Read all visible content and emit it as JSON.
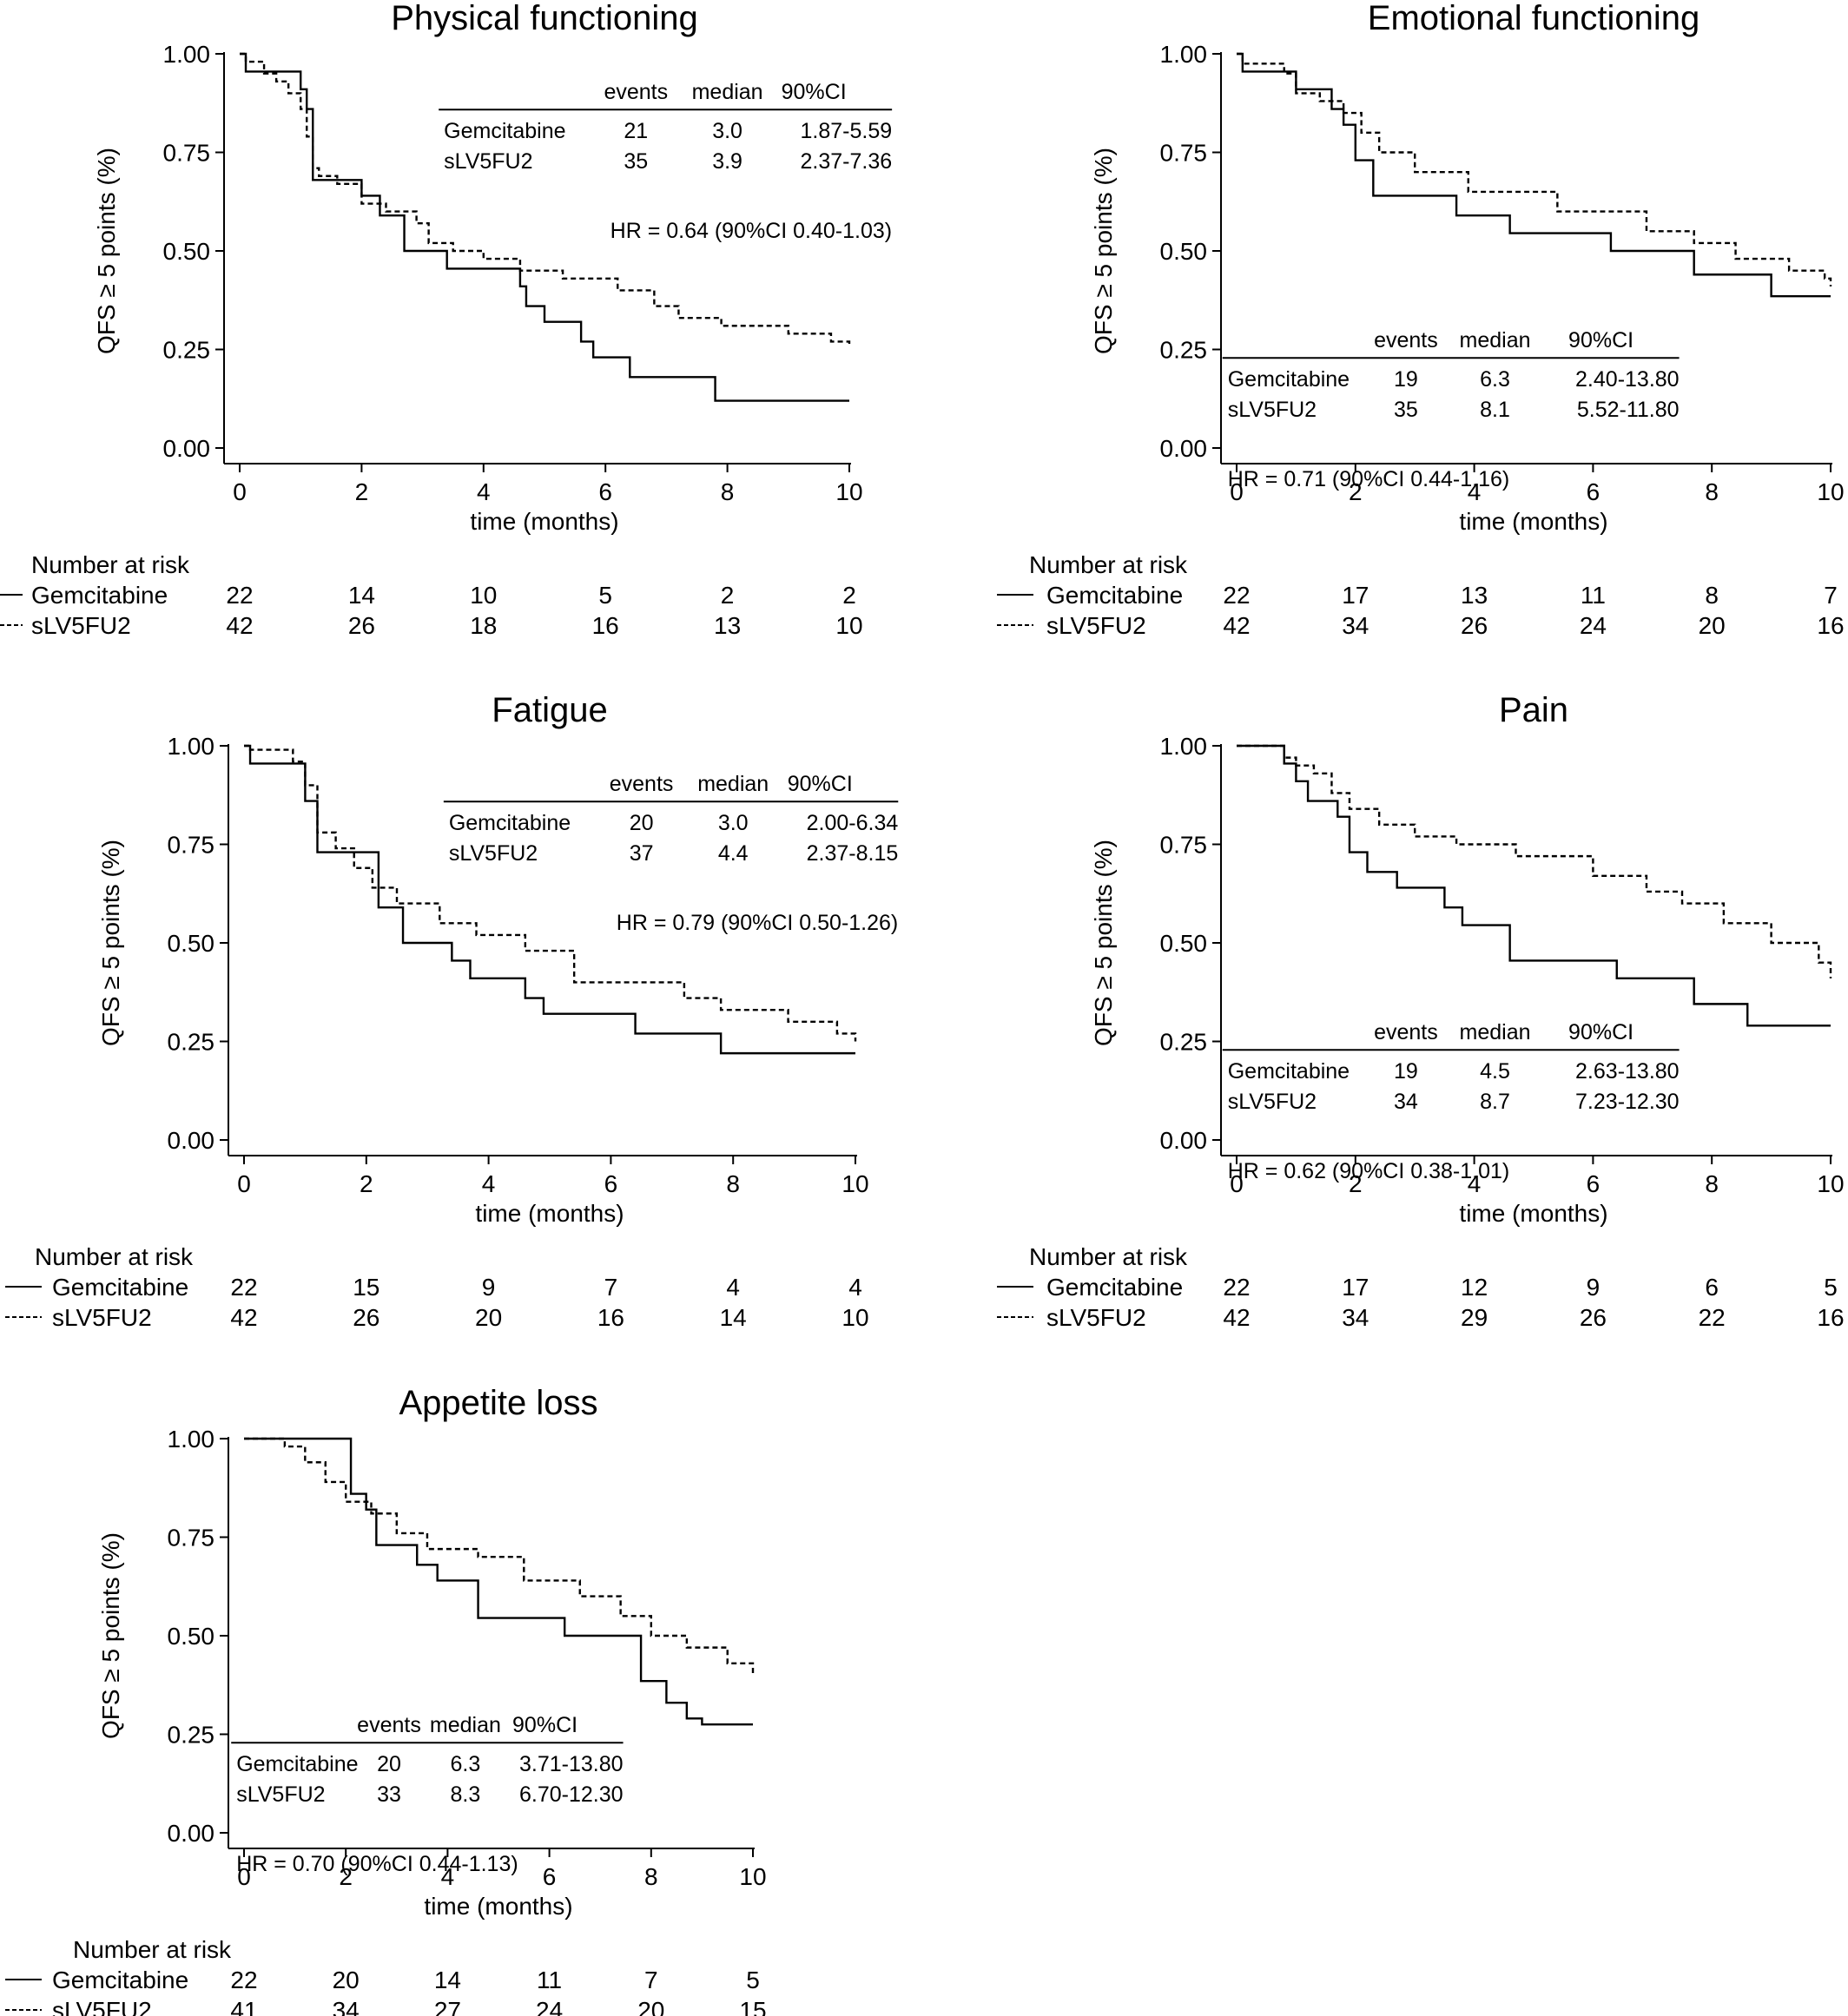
{
  "figure": {
    "y_axis_label": "QFS ≥ 5 points (%)",
    "x_axis_label": "time (months)",
    "risk_heading": "Number at risk",
    "table_headers": [
      "events",
      "median",
      "90%CI"
    ],
    "x_ticks": [
      "0",
      "2",
      "4",
      "6",
      "8",
      "10"
    ],
    "y_ticks": [
      "0.00",
      "0.25",
      "0.50",
      "0.75",
      "1.00"
    ],
    "arms": [
      "Gemcitabine",
      "sLV5FU2"
    ]
  },
  "chart_data": [
    {
      "type": "line",
      "title": "Physical functioning",
      "xlabel": "time (months)",
      "ylabel": "QFS ≥ 5 points (%)",
      "xlim": [
        0,
        10
      ],
      "ylim": [
        0,
        1
      ],
      "table_placement": "top-right",
      "table": [
        {
          "arm": "Gemcitabine",
          "events": "21",
          "median": "3.0",
          "ci": "1.87-5.59"
        },
        {
          "arm": "sLV5FU2",
          "events": "35",
          "median": "3.9",
          "ci": "2.37-7.36"
        }
      ],
      "hr": "HR = 0.64 (90%CI 0.40-1.03)",
      "series": [
        {
          "name": "Gemcitabine",
          "style": "solid",
          "x": [
            0,
            0.1,
            0.9,
            1.0,
            1.1,
            1.2,
            2.0,
            2.3,
            2.7,
            3.4,
            4.6,
            4.7,
            5.0,
            5.6,
            5.8,
            6.4,
            7.8,
            10.0
          ],
          "y": [
            1.0,
            0.955,
            0.955,
            0.91,
            0.86,
            0.68,
            0.64,
            0.59,
            0.5,
            0.455,
            0.41,
            0.36,
            0.32,
            0.27,
            0.23,
            0.18,
            0.12,
            0.12
          ]
        },
        {
          "name": "sLV5FU2",
          "style": "dashed",
          "x": [
            0,
            0.1,
            0.4,
            0.6,
            0.8,
            1.0,
            1.1,
            1.2,
            1.3,
            1.6,
            2.0,
            2.4,
            2.9,
            3.1,
            3.5,
            4.0,
            4.6,
            5.3,
            6.2,
            6.8,
            7.2,
            7.9,
            9.0,
            9.7,
            10.0
          ],
          "y": [
            1.0,
            0.98,
            0.95,
            0.93,
            0.9,
            0.86,
            0.79,
            0.71,
            0.69,
            0.67,
            0.62,
            0.6,
            0.57,
            0.52,
            0.5,
            0.48,
            0.45,
            0.43,
            0.4,
            0.36,
            0.33,
            0.31,
            0.29,
            0.27,
            0.26
          ]
        }
      ],
      "risk": [
        {
          "arm": "Gemcitabine",
          "counts": [
            "22",
            "14",
            "10",
            "5",
            "2",
            "2"
          ]
        },
        {
          "arm": "sLV5FU2",
          "counts": [
            "42",
            "26",
            "18",
            "16",
            "13",
            "10"
          ]
        }
      ]
    },
    {
      "type": "line",
      "title": "Emotional functioning",
      "xlabel": "time (months)",
      "ylabel": "QFS ≥ 5 points (%)",
      "xlim": [
        0,
        10
      ],
      "ylim": [
        0,
        1
      ],
      "table_placement": "bottom-left",
      "table": [
        {
          "arm": "Gemcitabine",
          "events": "19",
          "median": "6.3",
          "ci": "2.40-13.80"
        },
        {
          "arm": "sLV5FU2",
          "events": "35",
          "median": "8.1",
          "ci": "5.52-11.80"
        }
      ],
      "hr": "HR = 0.71 (90%CI 0.44-1.16)",
      "series": [
        {
          "name": "Gemcitabine",
          "style": "solid",
          "x": [
            0,
            0.1,
            0.9,
            1.0,
            1.6,
            1.8,
            2.0,
            2.3,
            3.7,
            4.6,
            6.3,
            7.7,
            9.0,
            10.0
          ],
          "y": [
            1.0,
            0.955,
            0.955,
            0.91,
            0.86,
            0.82,
            0.73,
            0.64,
            0.59,
            0.545,
            0.5,
            0.44,
            0.385,
            0.385
          ]
        },
        {
          "name": "sLV5FU2",
          "style": "dashed",
          "x": [
            0,
            0.1,
            0.8,
            1.0,
            1.4,
            1.8,
            2.1,
            2.4,
            3.0,
            3.9,
            5.4,
            6.9,
            7.7,
            8.4,
            9.3,
            9.9,
            10.0
          ],
          "y": [
            1.0,
            0.975,
            0.95,
            0.9,
            0.88,
            0.85,
            0.8,
            0.75,
            0.7,
            0.65,
            0.6,
            0.55,
            0.52,
            0.48,
            0.45,
            0.43,
            0.41
          ]
        }
      ],
      "risk": [
        {
          "arm": "Gemcitabine",
          "counts": [
            "22",
            "17",
            "13",
            "11",
            "8",
            "7"
          ]
        },
        {
          "arm": "sLV5FU2",
          "counts": [
            "42",
            "34",
            "26",
            "24",
            "20",
            "16"
          ]
        }
      ]
    },
    {
      "type": "line",
      "title": "Fatigue",
      "xlabel": "time (months)",
      "ylabel": "QFS ≥ 5 points (%)",
      "xlim": [
        0,
        10
      ],
      "ylim": [
        0,
        1
      ],
      "table_placement": "top-right",
      "table": [
        {
          "arm": "Gemcitabine",
          "events": "20",
          "median": "3.0",
          "ci": "2.00-6.34"
        },
        {
          "arm": "sLV5FU2",
          "events": "37",
          "median": "4.4",
          "ci": "2.37-8.15"
        }
      ],
      "hr": "HR = 0.79 (90%CI 0.50-1.26)",
      "series": [
        {
          "name": "Gemcitabine",
          "style": "solid",
          "x": [
            0,
            0.1,
            0.9,
            1.0,
            1.2,
            2.2,
            2.6,
            3.4,
            3.7,
            4.6,
            4.9,
            6.4,
            7.8,
            10.0
          ],
          "y": [
            1.0,
            0.955,
            0.955,
            0.86,
            0.73,
            0.59,
            0.5,
            0.455,
            0.41,
            0.36,
            0.32,
            0.27,
            0.22,
            0.22
          ]
        },
        {
          "name": "sLV5FU2",
          "style": "dashed",
          "x": [
            0,
            0.1,
            0.8,
            1.0,
            1.2,
            1.5,
            1.8,
            2.1,
            2.5,
            3.2,
            3.8,
            4.6,
            5.4,
            7.2,
            7.8,
            8.9,
            9.7,
            10.0
          ],
          "y": [
            1.0,
            0.99,
            0.96,
            0.9,
            0.78,
            0.74,
            0.69,
            0.64,
            0.6,
            0.55,
            0.52,
            0.48,
            0.4,
            0.36,
            0.33,
            0.3,
            0.27,
            0.25
          ]
        }
      ],
      "risk": [
        {
          "arm": "Gemcitabine",
          "counts": [
            "22",
            "15",
            "9",
            "7",
            "4",
            "4"
          ]
        },
        {
          "arm": "sLV5FU2",
          "counts": [
            "42",
            "26",
            "20",
            "16",
            "14",
            "10"
          ]
        }
      ]
    },
    {
      "type": "line",
      "title": "Pain",
      "xlabel": "time (months)",
      "ylabel": "QFS ≥ 5 points (%)",
      "xlim": [
        0,
        10
      ],
      "ylim": [
        0,
        1
      ],
      "table_placement": "bottom-left",
      "table": [
        {
          "arm": "Gemcitabine",
          "events": "19",
          "median": "4.5",
          "ci": "2.63-13.80"
        },
        {
          "arm": "sLV5FU2",
          "events": "34",
          "median": "8.7",
          "ci": "7.23-12.30"
        }
      ],
      "hr": "HR = 0.62 (90%CI 0.38-1.01)",
      "series": [
        {
          "name": "Gemcitabine",
          "style": "solid",
          "x": [
            0,
            0.8,
            1.0,
            1.2,
            1.7,
            1.9,
            2.2,
            2.7,
            3.5,
            3.8,
            4.6,
            6.4,
            7.7,
            8.6,
            10.0
          ],
          "y": [
            1.0,
            0.955,
            0.91,
            0.86,
            0.82,
            0.73,
            0.68,
            0.64,
            0.59,
            0.545,
            0.455,
            0.41,
            0.345,
            0.29,
            0.29
          ]
        },
        {
          "name": "sLV5FU2",
          "style": "dashed",
          "x": [
            0,
            0.8,
            1.0,
            1.3,
            1.6,
            1.9,
            2.4,
            3.0,
            3.7,
            4.7,
            6.0,
            6.9,
            7.5,
            8.2,
            9.0,
            9.8,
            10.0
          ],
          "y": [
            1.0,
            0.97,
            0.95,
            0.93,
            0.88,
            0.84,
            0.8,
            0.77,
            0.75,
            0.72,
            0.67,
            0.63,
            0.6,
            0.55,
            0.5,
            0.45,
            0.41
          ]
        }
      ],
      "risk": [
        {
          "arm": "Gemcitabine",
          "counts": [
            "22",
            "17",
            "12",
            "9",
            "6",
            "5"
          ]
        },
        {
          "arm": "sLV5FU2",
          "counts": [
            "42",
            "34",
            "29",
            "26",
            "22",
            "16"
          ]
        }
      ]
    },
    {
      "type": "line",
      "title": "Appetite loss",
      "xlabel": "time (months)",
      "ylabel": "QFS ≥ 5 points (%)",
      "xlim": [
        0,
        10
      ],
      "ylim": [
        0,
        1
      ],
      "table_placement": "bottom-left",
      "table": [
        {
          "arm": "Gemcitabine",
          "events": "20",
          "median": "6.3",
          "ci": "3.71-13.80"
        },
        {
          "arm": "sLV5FU2",
          "events": "33",
          "median": "8.3",
          "ci": "6.70-12.30"
        }
      ],
      "hr": "HR = 0.70 (90%CI 0.44-1.13)",
      "series": [
        {
          "name": "Gemcitabine",
          "style": "solid",
          "x": [
            0,
            1.9,
            2.1,
            2.4,
            2.6,
            3.4,
            3.8,
            4.6,
            6.3,
            7.8,
            8.3,
            8.7,
            9.0,
            10.0
          ],
          "y": [
            1.0,
            1.0,
            0.86,
            0.82,
            0.73,
            0.68,
            0.64,
            0.545,
            0.5,
            0.385,
            0.33,
            0.29,
            0.275,
            0.275
          ]
        },
        {
          "name": "sLV5FU2",
          "style": "dashed",
          "x": [
            0,
            0.8,
            1.2,
            1.6,
            2.0,
            2.5,
            3.0,
            3.6,
            4.6,
            5.5,
            6.6,
            7.4,
            8.0,
            8.7,
            9.5,
            10.0
          ],
          "y": [
            1.0,
            0.98,
            0.94,
            0.89,
            0.84,
            0.81,
            0.76,
            0.72,
            0.7,
            0.64,
            0.6,
            0.55,
            0.5,
            0.47,
            0.43,
            0.4
          ]
        }
      ],
      "risk": [
        {
          "arm": "Gemcitabine",
          "counts": [
            "22",
            "20",
            "14",
            "11",
            "7",
            "5"
          ]
        },
        {
          "arm": "sLV5FU2",
          "counts": [
            "41",
            "34",
            "27",
            "24",
            "20",
            "15"
          ]
        }
      ]
    }
  ]
}
